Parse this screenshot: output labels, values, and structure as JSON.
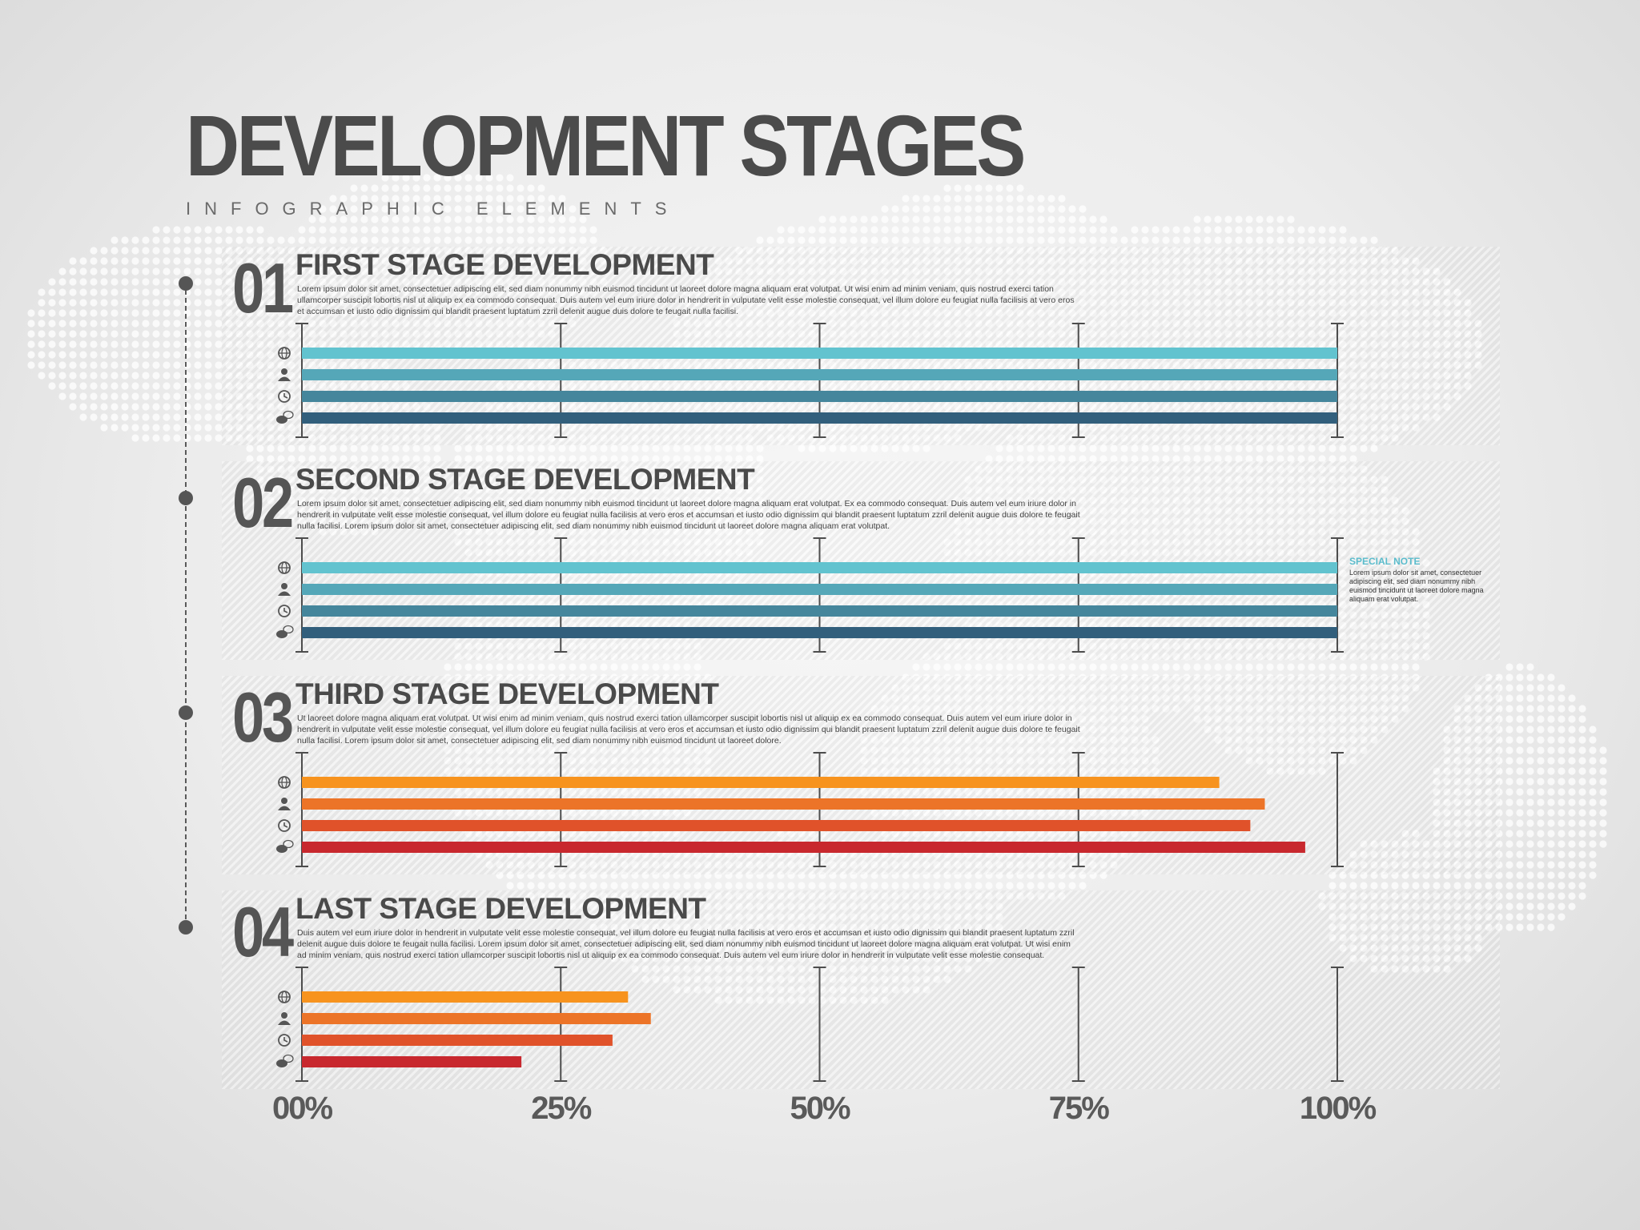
{
  "header": {
    "title": "DEVELOPMENT STAGES",
    "subtitle": "INFOGRAPHIC ELEMENTS"
  },
  "stages": [
    {
      "number": "01",
      "title": "FIRST STAGE DEVELOPMENT",
      "description": "Lorem ipsum dolor sit amet, consectetuer adipiscing elit, sed diam nonummy nibh euismod tincidunt ut laoreet dolore magna aliquam erat volutpat. Ut wisi enim ad minim veniam, quis nostrud exerci tation ullamcorper suscipit lobortis nisl ut aliquip ex ea commodo consequat. Duis autem vel eum iriure dolor in hendrerit in vulputate velit esse molestie consequat, vel illum dolore eu feugiat nulla facilisis at vero eros et accumsan et iusto odio dignissim qui blandit praesent luptatum zzril delenit augue duis dolore te feugait nulla facilisi."
    },
    {
      "number": "02",
      "title": "SECOND STAGE DEVELOPMENT",
      "description": "Lorem ipsum dolor sit amet, consectetuer adipiscing elit, sed diam nonummy nibh euismod tincidunt ut laoreet dolore magna aliquam erat volutpat. Ex ea commodo consequat. Duis autem vel eum iriure dolor in hendrerit in vulputate velit esse molestie consequat, vel illum dolore eu feugiat nulla facilisis at vero eros et accumsan et iusto odio dignissim qui blandit praesent luptatum zzril delenit augue duis dolore te feugait nulla facilisi. Lorem ipsum dolor sit amet, consectetuer adipiscing elit, sed diam nonummy nibh euismod tincidunt ut laoreet dolore magna aliquam erat volutpat."
    },
    {
      "number": "03",
      "title": "THIRD STAGE DEVELOPMENT",
      "description": "Ut laoreet dolore magna aliquam erat volutpat. Ut wisi enim ad minim veniam, quis nostrud exerci tation ullamcorper suscipit lobortis nisl ut aliquip ex ea commodo consequat. Duis autem vel eum iriure dolor in hendrerit in vulputate velit esse molestie consequat, vel illum dolore eu feugiat nulla facilisis at vero eros et accumsan et iusto odio dignissim qui blandit praesent luptatum zzril delenit augue duis dolore te feugait nulla facilisi. Lorem ipsum dolor sit amet, consectetuer adipiscing elit, sed diam nonummy nibh euismod tincidunt ut laoreet dolore."
    },
    {
      "number": "04",
      "title": "LAST STAGE DEVELOPMENT",
      "description": "Duis autem vel eum iriure dolor in hendrerit in vulputate velit esse molestie consequat, vel illum dolore eu feugiat nulla facilisis at vero eros et accumsan et iusto odio dignissim qui blandit praesent luptatum zzril delenit augue duis dolore te feugait nulla facilisi. Lorem ipsum dolor sit amet, consectetuer adipiscing elit, sed diam nonummy nibh euismod tincidunt ut laoreet dolore magna aliquam erat volutpat. Ut wisi enim ad minim veniam, quis nostrud exerci tation ullamcorper suscipit lobortis nisl ut aliquip ex ea commodo consequat. Duis autem vel eum iriure dolor in hendrerit in vulputate velit esse molestie consequat."
    }
  ],
  "special_note": {
    "title": "SPECIAL NOTE",
    "text": "Lorem ipsum dolor sit amet, consectetuer adipiscing elit, sed diam nonummy nibh euismod tincidunt ut laoreet dolore magna aliquam erat volutpat."
  },
  "icons": [
    "globe-icon",
    "user-icon",
    "clock-icon",
    "chat-icon"
  ],
  "chart_data": {
    "type": "bar",
    "orientation": "horizontal",
    "xlim": [
      0,
      100
    ],
    "xticks": [
      "00%",
      "25%",
      "50%",
      "75%",
      "100%"
    ],
    "grid": true,
    "groups": [
      {
        "stage": "01",
        "values": [
          100,
          100,
          100,
          100
        ],
        "colors": [
          "#62c3cf",
          "#55a7b8",
          "#45869c",
          "#325f7c"
        ]
      },
      {
        "stage": "02",
        "values": [
          100,
          100,
          100,
          100
        ],
        "colors": [
          "#62c3cf",
          "#55a7b8",
          "#45869c",
          "#325f7c"
        ]
      },
      {
        "stage": "03",
        "values": [
          88.6,
          93.0,
          91.6,
          96.9
        ],
        "colors": [
          "#f7931e",
          "#ec7428",
          "#e0522a",
          "#c8282e"
        ]
      },
      {
        "stage": "04",
        "values": [
          31.5,
          33.7,
          30.0,
          21.2
        ],
        "colors": [
          "#f7931e",
          "#ec7428",
          "#e0522a",
          "#c8282e"
        ]
      }
    ]
  }
}
